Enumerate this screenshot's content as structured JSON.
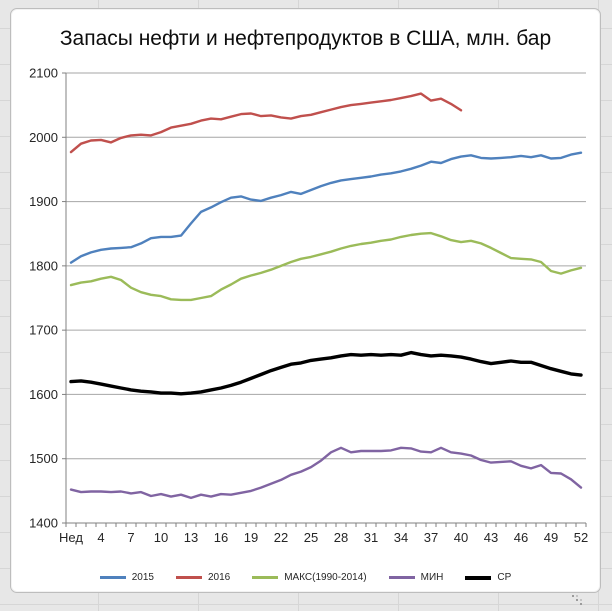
{
  "chart_data": {
    "type": "line",
    "title": "Запасы нефти и нефтепродуктов в США, млн. бар",
    "units": "млн. бар",
    "grid": true,
    "legend_position": "bottom",
    "y_axis": {
      "min": 1400,
      "max": 2100,
      "step": 100,
      "ticks": [
        2100,
        2000,
        1900,
        1800,
        1700,
        1600,
        1500,
        1400
      ]
    },
    "x_axis": {
      "weeks": 52,
      "tick_labels": [
        {
          "week": 1,
          "label": "Нед"
        },
        {
          "week": 4,
          "label": "4"
        },
        {
          "week": 7,
          "label": "7"
        },
        {
          "week": 10,
          "label": "10"
        },
        {
          "week": 13,
          "label": "13"
        },
        {
          "week": 16,
          "label": "16"
        },
        {
          "week": 19,
          "label": "19"
        },
        {
          "week": 22,
          "label": "22"
        },
        {
          "week": 25,
          "label": "25"
        },
        {
          "week": 28,
          "label": "28"
        },
        {
          "week": 31,
          "label": "31"
        },
        {
          "week": 34,
          "label": "34"
        },
        {
          "week": 37,
          "label": "37"
        },
        {
          "week": 40,
          "label": "40"
        },
        {
          "week": 43,
          "label": "43"
        },
        {
          "week": 46,
          "label": "46"
        },
        {
          "week": 49,
          "label": "49"
        },
        {
          "week": 52,
          "label": "52"
        }
      ]
    },
    "series": [
      {
        "name": "2015",
        "color": "#4F81BD",
        "values": [
          1805,
          1815,
          1821,
          1825,
          1827,
          1828,
          1829,
          1835,
          1843,
          1845,
          1845,
          1847,
          1866,
          1884,
          1891,
          1899,
          1906,
          1908,
          1903,
          1901,
          1906,
          1910,
          1915,
          1912,
          1918,
          1924,
          1929,
          1933,
          1935,
          1937,
          1939,
          1942,
          1944,
          1947,
          1951,
          1956,
          1962,
          1960,
          1966,
          1970,
          1972,
          1968,
          1967,
          1968,
          1969,
          1971,
          1969,
          1972,
          1967,
          1968,
          1973,
          1976
        ]
      },
      {
        "name": "2016",
        "color": "#C0504D",
        "values": [
          1977,
          1990,
          1995,
          1996,
          1992,
          1999,
          2003,
          2004,
          2003,
          2008,
          2015,
          2018,
          2021,
          2026,
          2029,
          2028,
          2032,
          2036,
          2037,
          2033,
          2034,
          2031,
          2029,
          2033,
          2035,
          2039,
          2043,
          2047,
          2050,
          2052,
          2054,
          2056,
          2058,
          2061,
          2064,
          2068,
          2057,
          2060,
          2052,
          2042
        ]
      },
      {
        "name": "МАКС(1990-2014)",
        "color": "#9BBB59",
        "values": [
          1770,
          1774,
          1776,
          1780,
          1783,
          1778,
          1766,
          1759,
          1755,
          1753,
          1748,
          1747,
          1747,
          1750,
          1753,
          1763,
          1771,
          1780,
          1785,
          1789,
          1794,
          1800,
          1806,
          1811,
          1814,
          1818,
          1822,
          1827,
          1831,
          1834,
          1836,
          1839,
          1841,
          1845,
          1848,
          1850,
          1851,
          1846,
          1840,
          1837,
          1839,
          1835,
          1828,
          1820,
          1812,
          1811,
          1810,
          1806,
          1792,
          1788,
          1793,
          1797
        ]
      },
      {
        "name": "МИН",
        "color": "#8064A2",
        "values": [
          1452,
          1448,
          1449,
          1449,
          1448,
          1449,
          1446,
          1448,
          1442,
          1445,
          1441,
          1444,
          1439,
          1444,
          1441,
          1445,
          1444,
          1447,
          1450,
          1455,
          1461,
          1467,
          1475,
          1480,
          1487,
          1497,
          1510,
          1517,
          1510,
          1512,
          1512,
          1512,
          1513,
          1517,
          1516,
          1511,
          1510,
          1517,
          1510,
          1508,
          1505,
          1498,
          1494,
          1495,
          1496,
          1489,
          1485,
          1490,
          1478,
          1477,
          1468,
          1455
        ]
      },
      {
        "name": "СР",
        "color": "#000000",
        "values": [
          1620,
          1621,
          1619,
          1616,
          1613,
          1610,
          1607,
          1605,
          1604,
          1602,
          1602,
          1601,
          1602,
          1604,
          1607,
          1610,
          1614,
          1619,
          1625,
          1631,
          1637,
          1642,
          1647,
          1649,
          1653,
          1655,
          1657,
          1660,
          1662,
          1661,
          1662,
          1661,
          1662,
          1661,
          1665,
          1662,
          1660,
          1661,
          1660,
          1658,
          1655,
          1651,
          1648,
          1650,
          1652,
          1650,
          1650,
          1645,
          1640,
          1636,
          1632,
          1630
        ]
      }
    ]
  }
}
